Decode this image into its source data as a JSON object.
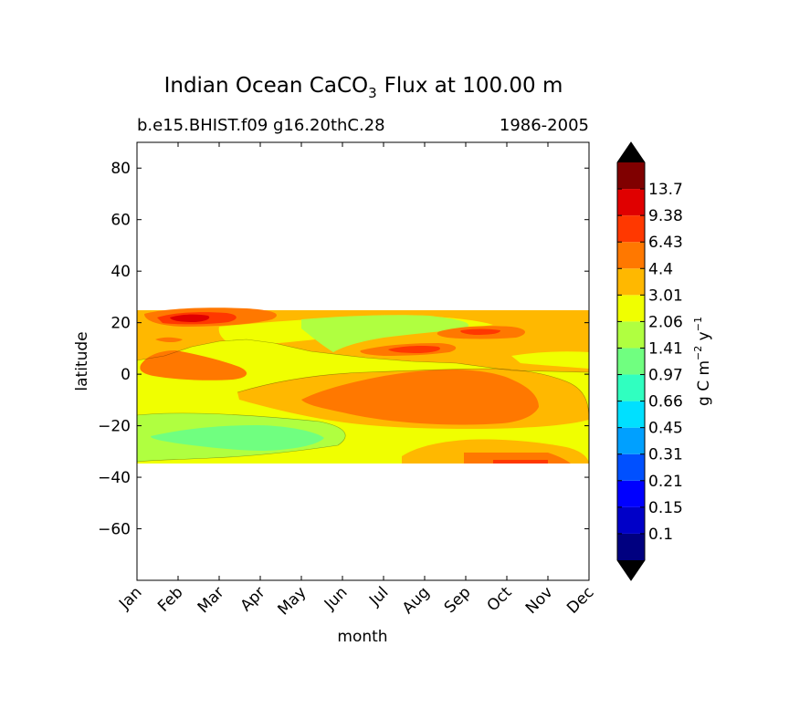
{
  "chart_data": {
    "type": "heatmap",
    "subtype": "filled-contour",
    "title": {
      "prefix": "Indian Ocean CaCO",
      "subscript": "3",
      "suffix": "Flux at 100.00 m"
    },
    "subtitle_left": "b.e15.BHIST.f09 g16.20thC.28",
    "subtitle_right": "1986-2005",
    "xlabel": "month",
    "ylabel": "latitude",
    "x_categories": [
      "Jan",
      "Feb",
      "Mar",
      "Apr",
      "May",
      "Jun",
      "Jul",
      "Aug",
      "Sep",
      "Oct",
      "Nov",
      "Dec"
    ],
    "xlim": [
      0,
      11
    ],
    "ylim": [
      -80,
      90
    ],
    "y_ticks": [
      80,
      60,
      40,
      20,
      0,
      -20,
      -40,
      -60
    ],
    "y_tick_labels": [
      "80",
      "60",
      "40",
      "20",
      "0",
      "−20",
      "−40",
      "−60"
    ],
    "data_lat_range": [
      -34,
      25
    ],
    "colorbar": {
      "label_prefix": "g C m",
      "label_exp1": "−2",
      "label_mid": " y",
      "label_exp2": "−1",
      "levels": [
        "0.1",
        "0.15",
        "0.21",
        "0.31",
        "0.45",
        "0.66",
        "0.97",
        "1.41",
        "2.06",
        "3.01",
        "4.4",
        "6.43",
        "9.38",
        "13.7"
      ],
      "level_values": [
        0.1,
        0.15,
        0.21,
        0.31,
        0.45,
        0.66,
        0.97,
        1.41,
        2.06,
        3.01,
        4.4,
        6.43,
        9.38,
        13.7
      ],
      "colors": [
        "#000080",
        "#0000c8",
        "#0000ff",
        "#0050ff",
        "#00a0ff",
        "#00e0ff",
        "#30ffc0",
        "#70ff80",
        "#b0ff40",
        "#f0ff00",
        "#ffb800",
        "#ff7800",
        "#ff3800",
        "#e00000",
        "#800000"
      ],
      "extend": "both",
      "under_color": "#000000",
      "over_color": "#000000"
    },
    "regions": [
      {
        "name": "north-band",
        "lat": [
          10,
          25
        ],
        "months": [
          "Jan",
          "Dec"
        ],
        "level": "3.01–4.4 with 2.06–3.01 tongue"
      },
      {
        "name": "arabian-sea-max",
        "lat": [
          21,
          25
        ],
        "months": [
          "Feb",
          "Apr"
        ],
        "level": "6.43–13.7"
      },
      {
        "name": "winter-4.4-patch",
        "lat": [
          0,
          10
        ],
        "months": [
          "Jan",
          "Apr"
        ],
        "level": "4.4–6.43"
      },
      {
        "name": "summer-equatorial-4.4",
        "lat": [
          -18,
          5
        ],
        "months": [
          "Jun",
          "Nov"
        ],
        "level": "4.4–6.43"
      },
      {
        "name": "summer-north-max",
        "lat": [
          8,
          19
        ],
        "months": [
          "Jul",
          "Oct"
        ],
        "level": "6.43–9.38"
      },
      {
        "name": "south-1.41-patch",
        "lat": [
          -30,
          -18
        ],
        "months": [
          "Jan",
          "May"
        ],
        "level": "0.97–1.41"
      },
      {
        "name": "south-band",
        "lat": [
          -34,
          -20
        ],
        "months": [
          "Jan",
          "Dec"
        ],
        "level": "1.41–2.06"
      }
    ]
  }
}
